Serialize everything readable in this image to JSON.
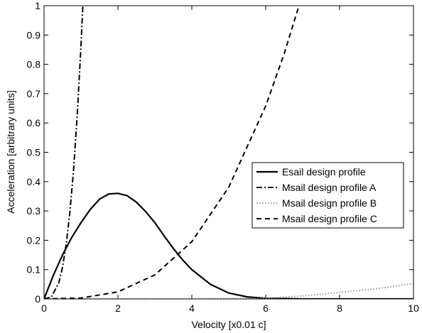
{
  "chart_data": {
    "type": "line",
    "x_label": "Velocity [x0.01 c]",
    "y_label": "Acceleration [arbitrary units]",
    "xlim": [
      0,
      10
    ],
    "ylim": [
      0,
      1
    ],
    "xticks": [
      0,
      2,
      4,
      6,
      8,
      10
    ],
    "yticks": [
      0,
      0.1,
      0.2,
      0.3,
      0.4,
      0.5,
      0.6,
      0.7,
      0.8,
      0.9,
      1
    ],
    "legend": "right",
    "series": [
      {
        "name": "Esail design profile",
        "color": "#000000",
        "dash": "solid",
        "width": 2.2,
        "x": [
          0,
          0.25,
          0.5,
          0.75,
          1,
          1.25,
          1.5,
          1.75,
          2,
          2.25,
          2.5,
          2.75,
          3,
          3.25,
          3.5,
          3.75,
          4,
          4.5,
          5,
          5.5,
          6,
          7,
          8,
          9,
          10
        ],
        "values": [
          0,
          0.08,
          0.15,
          0.21,
          0.26,
          0.305,
          0.34,
          0.358,
          0.36,
          0.352,
          0.33,
          0.298,
          0.26,
          0.215,
          0.172,
          0.133,
          0.1,
          0.05,
          0.02,
          0.007,
          0.002,
          0,
          0,
          0,
          0
        ]
      },
      {
        "name": "Msail design profile A",
        "color": "#000000",
        "dash": "dashdot",
        "width": 2,
        "x": [
          0,
          0.2,
          0.4,
          0.5,
          0.6,
          0.7,
          0.8,
          0.9,
          1,
          1.05
        ],
        "values": [
          0,
          0.007,
          0.055,
          0.108,
          0.187,
          0.296,
          0.442,
          0.63,
          0.864,
          1
        ]
      },
      {
        "name": "Msail design profile B",
        "color": "#999999",
        "dash": "dotted",
        "width": 2,
        "x": [
          0,
          2,
          4,
          6,
          7,
          8,
          9,
          10
        ],
        "values": [
          0,
          0,
          0,
          0.002,
          0.01,
          0.022,
          0.035,
          0.052
        ]
      },
      {
        "name": "Msail design profile C",
        "color": "#000000",
        "dash": "dashed",
        "width": 2,
        "x": [
          0,
          1,
          2,
          3,
          4,
          5,
          6,
          6.5,
          6.9
        ],
        "values": [
          0,
          0.003,
          0.024,
          0.082,
          0.195,
          0.381,
          0.658,
          0.836,
          1
        ]
      }
    ]
  }
}
